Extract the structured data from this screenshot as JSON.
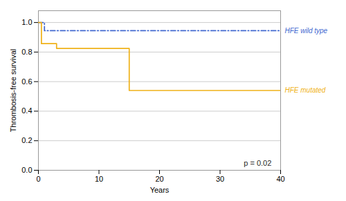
{
  "chart_data": {
    "type": "step",
    "xlabel": "Years",
    "ylabel": "Thrombosis-free survival",
    "series": [
      {
        "name": "HFE wild type",
        "line_style": "dashdot",
        "x": [
          0,
          0,
          1.0,
          1.0,
          40
        ],
        "values": [
          1.0,
          1.0,
          1.0,
          0.945,
          0.945
        ]
      },
      {
        "name": "HFE mutated",
        "line_style": "solid",
        "x": [
          0,
          0,
          0.5,
          0.5,
          3.0,
          3.0,
          15.0,
          15.0,
          40
        ],
        "values": [
          1.0,
          1.0,
          1.0,
          0.857,
          0.857,
          0.825,
          0.825,
          0.54,
          0.54
        ]
      }
    ],
    "annotations": [
      {
        "text": "p = 0.02",
        "x": 38.5,
        "y": 0.03
      }
    ],
    "xlim": [
      0,
      40
    ],
    "ylim": [
      0.0,
      1.08
    ],
    "xticks": [
      0,
      10,
      20,
      30,
      40
    ],
    "yticks": [
      {
        "value": 0.0,
        "label": "0.0"
      },
      0.2,
      0.4,
      0.6,
      0.8,
      {
        "value": 1.0,
        "label": "1.0"
      }
    ],
    "grid": true
  }
}
